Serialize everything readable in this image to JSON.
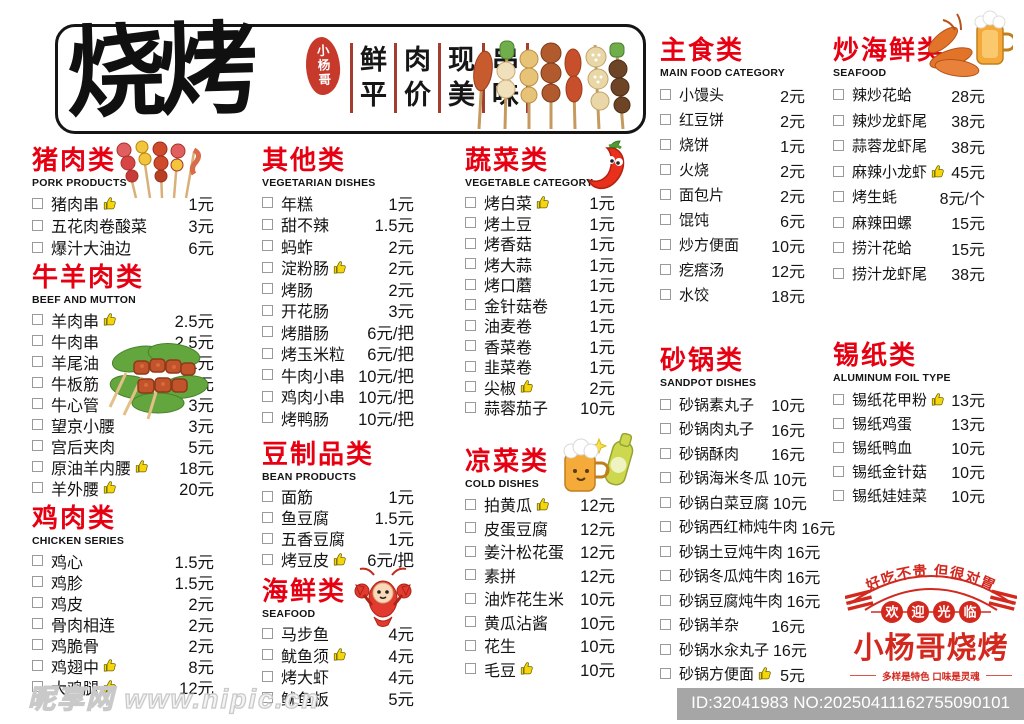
{
  "header": {
    "brand": "烧烤",
    "seal": "小杨哥",
    "slogan_rows": [
      [
        "鲜",
        "肉",
        "现",
        "串"
      ],
      [
        "平",
        "价",
        "美",
        "味"
      ]
    ],
    "skewers_icon": "skewers-illustration-icon"
  },
  "sections": {
    "pork": {
      "title": "猪肉类",
      "subtitle": "PORK PRODUCTS",
      "icon": "pork-skewers-icon",
      "items": [
        {
          "name": "猪肉串",
          "price": "1元",
          "thumb": true
        },
        {
          "name": "五花肉卷酸菜",
          "price": "3元"
        },
        {
          "name": "爆汁大油边",
          "price": "6元"
        }
      ]
    },
    "beef_mutton": {
      "title": "牛羊肉类",
      "subtitle": "BEEF AND MUTTON",
      "icon": "meat-skewer-icon",
      "items": [
        {
          "name": "羊肉串",
          "price": "2.5元",
          "thumb": true
        },
        {
          "name": "牛肉串",
          "price": "2.5元"
        },
        {
          "name": "羊尾油",
          "price": "2元"
        },
        {
          "name": "牛板筋",
          "price": "3元"
        },
        {
          "name": "牛心管",
          "price": "3元"
        },
        {
          "name": "望京小腰",
          "price": "3元"
        },
        {
          "name": "宫后夹肉",
          "price": "5元"
        },
        {
          "name": "原油羊内腰",
          "price": "18元",
          "thumb": true
        },
        {
          "name": "羊外腰",
          "price": "20元",
          "thumb": true
        }
      ]
    },
    "chicken": {
      "title": "鸡肉类",
      "subtitle": "CHICKEN SERIES",
      "items": [
        {
          "name": "鸡心",
          "price": "1.5元"
        },
        {
          "name": "鸡胗",
          "price": "1.5元"
        },
        {
          "name": "鸡皮",
          "price": "2元"
        },
        {
          "name": "骨肉相连",
          "price": "2元"
        },
        {
          "name": "鸡脆骨",
          "price": "2元"
        },
        {
          "name": "鸡翅中",
          "price": "8元",
          "thumb": true
        },
        {
          "name": "大鸡腿",
          "price": "12元",
          "thumb": true
        }
      ]
    },
    "other": {
      "title": "其他类",
      "subtitle": "VEGETARIAN DISHES",
      "items": [
        {
          "name": "年糕",
          "price": "1元"
        },
        {
          "name": "甜不辣",
          "price": "1.5元"
        },
        {
          "name": "蚂蚱",
          "price": "2元"
        },
        {
          "name": "淀粉肠",
          "price": "2元",
          "thumb": true
        },
        {
          "name": "烤肠",
          "price": "2元"
        },
        {
          "name": "开花肠",
          "price": "3元"
        },
        {
          "name": "烤腊肠",
          "price": "6元/把"
        },
        {
          "name": "烤玉米粒",
          "price": "6元/把"
        },
        {
          "name": "牛肉小串",
          "price": "10元/把"
        },
        {
          "name": "鸡肉小串",
          "price": "10元/把"
        },
        {
          "name": "烤鸭肠",
          "price": "10元/把"
        }
      ]
    },
    "bean": {
      "title": "豆制品类",
      "subtitle": "BEAN PRODUCTS",
      "items": [
        {
          "name": "面筋",
          "price": "1元"
        },
        {
          "name": "鱼豆腐",
          "price": "1.5元"
        },
        {
          "name": "五香豆腐",
          "price": "1元"
        },
        {
          "name": "烤豆皮",
          "price": "6元/把",
          "thumb": true
        }
      ]
    },
    "seafood": {
      "title": "海鲜类",
      "subtitle": "SEAFOOD",
      "icon": "crawfish-icon",
      "items": [
        {
          "name": "马步鱼",
          "price": "4元"
        },
        {
          "name": "鱿鱼须",
          "price": "4元",
          "thumb": true
        },
        {
          "name": "烤大虾",
          "price": "4元"
        },
        {
          "name": "鱿鱼板",
          "price": "5元"
        }
      ]
    },
    "vegetable": {
      "title": "蔬菜类",
      "subtitle": "VEGETABLE CATEGORY",
      "icon": "chili-icon",
      "items": [
        {
          "name": "烤白菜",
          "price": "1元",
          "thumb": true
        },
        {
          "name": "烤土豆",
          "price": "1元"
        },
        {
          "name": "烤香菇",
          "price": "1元"
        },
        {
          "name": "烤大蒜",
          "price": "1元"
        },
        {
          "name": "烤口蘑",
          "price": "1元"
        },
        {
          "name": "金针菇卷",
          "price": "1元"
        },
        {
          "name": "油麦卷",
          "price": "1元"
        },
        {
          "name": "香菜卷",
          "price": "1元"
        },
        {
          "name": "韭菜卷",
          "price": "1元"
        },
        {
          "name": "尖椒",
          "price": "2元",
          "thumb": true
        },
        {
          "name": "蒜蓉茄子",
          "price": "10元"
        }
      ]
    },
    "cold": {
      "title": "凉菜类",
      "subtitle": "COLD DISHES",
      "icon": "beer-cheers-icon",
      "items": [
        {
          "name": "拍黄瓜",
          "price": "12元",
          "thumb": true
        },
        {
          "name": "皮蛋豆腐",
          "price": "12元"
        },
        {
          "name": "姜汁松花蛋",
          "price": "12元"
        },
        {
          "name": "素拼",
          "price": "12元"
        },
        {
          "name": "油炸花生米",
          "price": "10元"
        },
        {
          "name": "黄瓜沾酱",
          "price": "10元"
        },
        {
          "name": "花生",
          "price": "10元"
        },
        {
          "name": "毛豆",
          "price": "10元",
          "thumb": true
        }
      ]
    },
    "main_food": {
      "title": "主食类",
      "subtitle": "MAIN FOOD CATEGORY",
      "items": [
        {
          "name": "小馒头",
          "price": "2元"
        },
        {
          "name": "红豆饼",
          "price": "2元"
        },
        {
          "name": "烧饼",
          "price": "1元"
        },
        {
          "name": "火烧",
          "price": "2元"
        },
        {
          "name": "面包片",
          "price": "2元"
        },
        {
          "name": "馄饨",
          "price": "6元"
        },
        {
          "name": "炒方便面",
          "price": "10元"
        },
        {
          "name": "疙瘩汤",
          "price": "12元"
        },
        {
          "name": "水饺",
          "price": "18元"
        }
      ]
    },
    "sandpot": {
      "title": "砂锅类",
      "subtitle": "SANDPOT DISHES",
      "items": [
        {
          "name": "砂锅素丸子",
          "price": "10元"
        },
        {
          "name": "砂锅肉丸子",
          "price": "16元"
        },
        {
          "name": "砂锅酥肉",
          "price": "16元"
        },
        {
          "name": "砂锅海米冬瓜",
          "price": "10元"
        },
        {
          "name": "砂锅白菜豆腐",
          "price": "10元"
        },
        {
          "name": "砂锅西红柿炖牛肉",
          "price": "16元"
        },
        {
          "name": "砂锅土豆炖牛肉",
          "price": "16元"
        },
        {
          "name": "砂锅冬瓜炖牛肉",
          "price": "16元"
        },
        {
          "name": "砂锅豆腐炖牛肉",
          "price": "16元"
        },
        {
          "name": "砂锅羊杂",
          "price": "16元"
        },
        {
          "name": "砂锅水汆丸子",
          "price": "16元"
        },
        {
          "name": "砂锅方便面",
          "price": "5元",
          "thumb": true
        }
      ]
    },
    "stir_seafood": {
      "title": "炒海鲜类",
      "subtitle": "SEAFOOD",
      "icon": "beer-crawfish-icon",
      "items": [
        {
          "name": "辣炒花蛤",
          "price": "28元"
        },
        {
          "name": "辣炒龙虾尾",
          "price": "38元"
        },
        {
          "name": "蒜蓉龙虾尾",
          "price": "38元"
        },
        {
          "name": "麻辣小龙虾",
          "price": "45元",
          "thumb": true
        },
        {
          "name": "烤生蚝",
          "price": "8元/个"
        },
        {
          "name": "麻辣田螺",
          "price": "15元"
        },
        {
          "name": "捞汁花蛤",
          "price": "15元"
        },
        {
          "name": "捞汁龙虾尾",
          "price": "38元"
        }
      ]
    },
    "foil": {
      "title": "锡纸类",
      "subtitle": "ALUMINUM FOIL TYPE",
      "items": [
        {
          "name": "锡纸花甲粉",
          "price": "13元",
          "thumb": true
        },
        {
          "name": "锡纸鸡蛋",
          "price": "13元"
        },
        {
          "name": "锡纸鸭血",
          "price": "10元"
        },
        {
          "name": "锡纸金针菇",
          "price": "10元"
        },
        {
          "name": "锡纸娃娃菜",
          "price": "10元"
        }
      ]
    }
  },
  "stamp": {
    "arc_text": "好吃不贵 但很对胃",
    "welcome": [
      "欢",
      "迎",
      "光",
      "临"
    ],
    "name": "小杨哥烧烤",
    "tagline": "多样是特色 口味是灵魂"
  },
  "watermark": {
    "site": "昵享网 www.nipic.cn",
    "id_bar": "ID:32041983 NO:20250411162755090101"
  },
  "colors": {
    "accent_red": "#e60012",
    "slogan_bar_red": "#a33d30",
    "stamp_red": "#d2281e",
    "seal_red": "#c6392b",
    "id_bar_gray": "#a0a0a0"
  }
}
